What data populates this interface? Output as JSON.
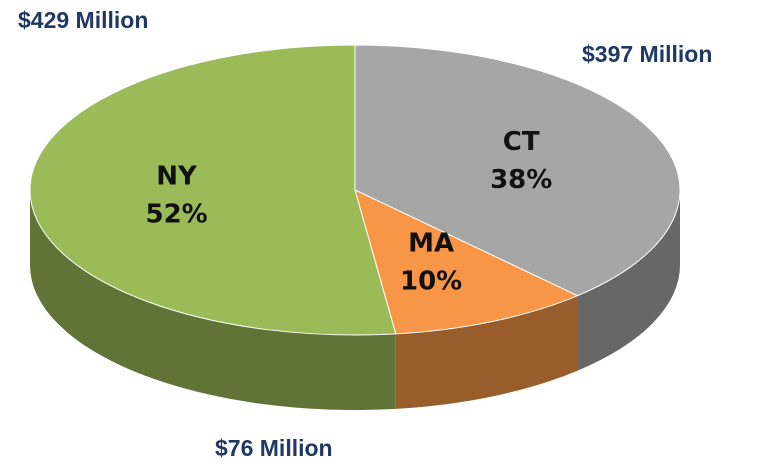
{
  "chart_data": {
    "type": "pie",
    "categories": [
      "CT",
      "MA",
      "NY"
    ],
    "values": [
      38,
      10,
      52
    ],
    "value_labels": [
      "38%",
      "10%",
      "52%"
    ],
    "colors": [
      "#a6a6a6",
      "#f79646",
      "#9bbb59"
    ],
    "annotations": [
      "$429 Million",
      "$397 Million",
      "$76 Million"
    ]
  }
}
